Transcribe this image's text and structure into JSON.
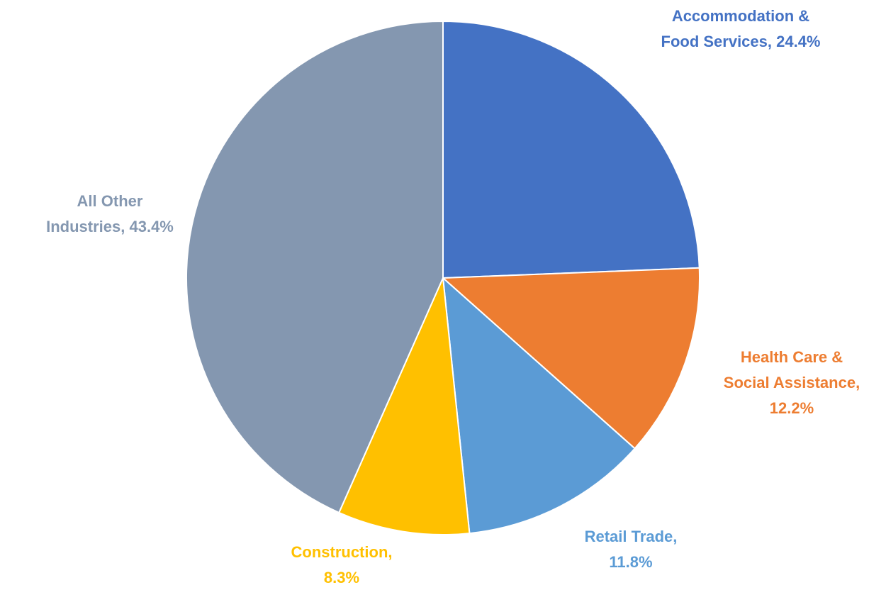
{
  "chart_data": {
    "type": "pie",
    "values": [
      24.4,
      12.2,
      11.8,
      8.3,
      43.4
    ],
    "value_labels": [
      "Accommodation & Food Services, 24.4%",
      "Health Care & Social Assistance, 12.2%",
      "Retail Trade, 11.8%",
      "Construction, 8.3%",
      "All Other Industries, 43.4%"
    ],
    "colors": [
      "#4472c4",
      "#ed7d31",
      "#5b9bd5",
      "#ffc000",
      "#8497b0"
    ]
  }
}
